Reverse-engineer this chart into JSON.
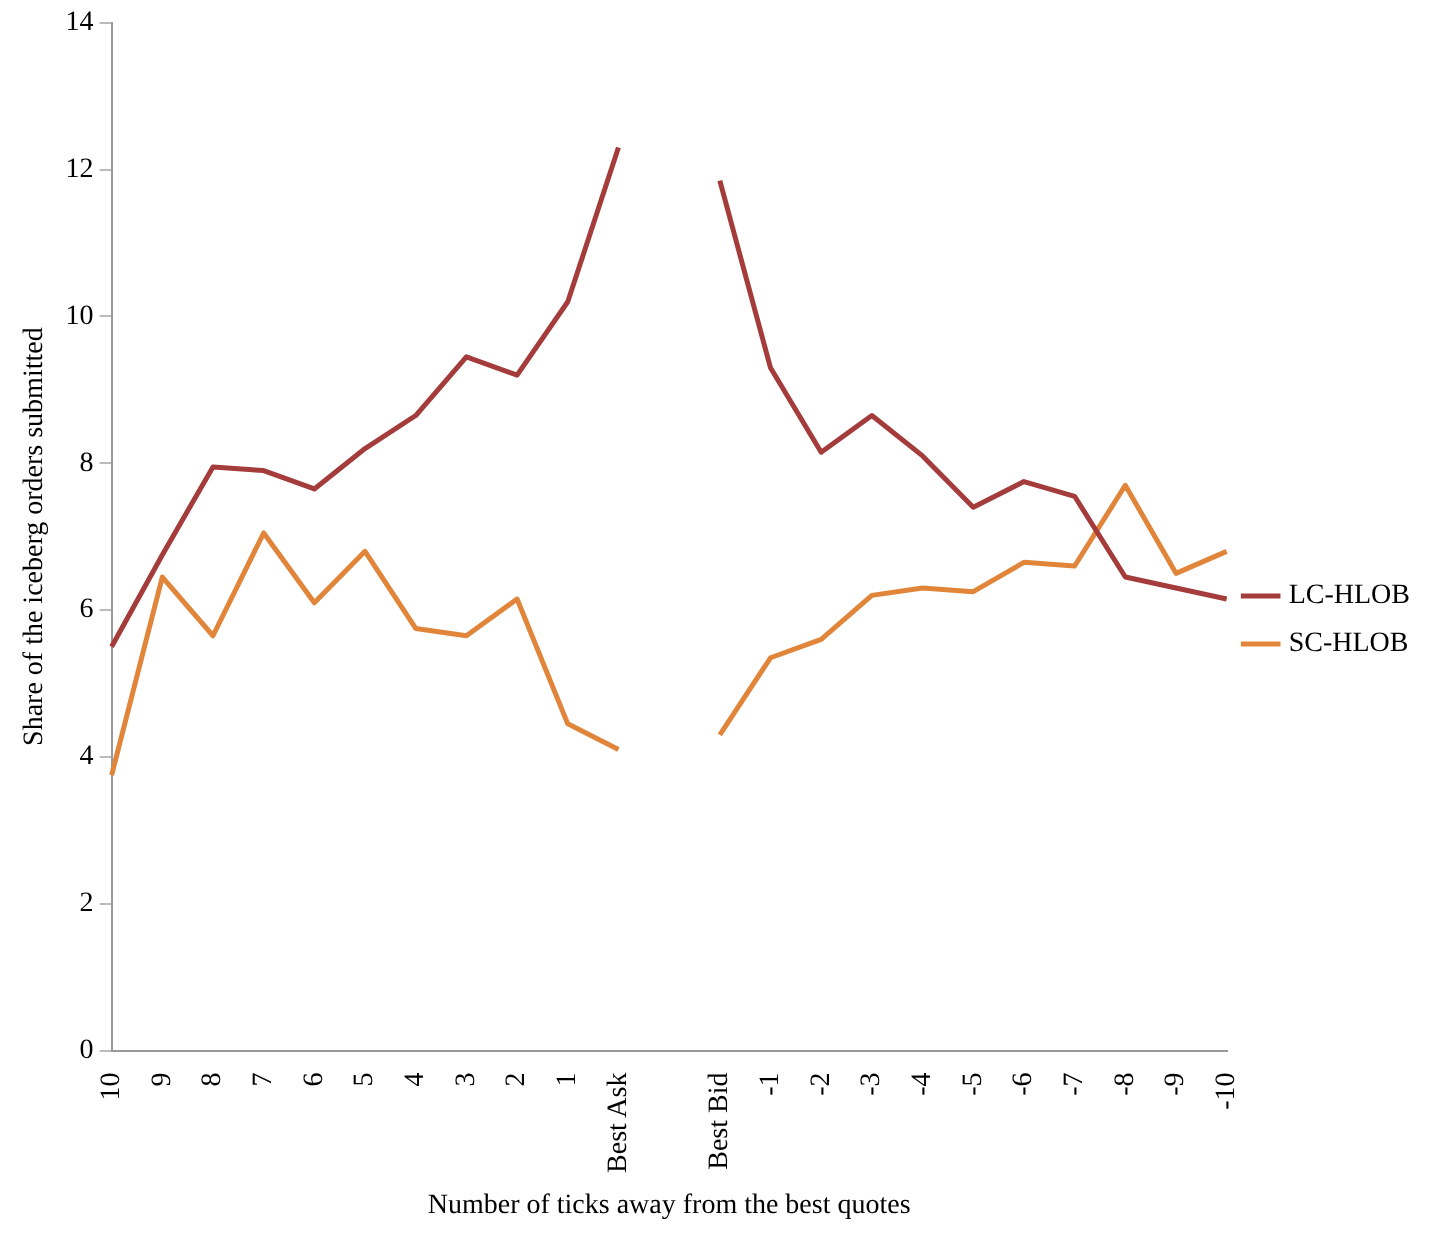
{
  "chart_data": {
    "type": "line",
    "xlabel": "Number of ticks away from the best quotes",
    "ylabel": "Share of the iceberg orders submitted",
    "categories": [
      "10",
      "9",
      "8",
      "7",
      "6",
      "5",
      "4",
      "3",
      "2",
      "1",
      "Best Ask",
      null,
      "Best Bid",
      "-1",
      "-2",
      "-3",
      "-4",
      "-5",
      "-6",
      "-7",
      "-8",
      "-9",
      "-10"
    ],
    "series": [
      {
        "name": "LC-HLOB",
        "color": "#a33c3a",
        "values": [
          5.5,
          6.75,
          7.95,
          7.9,
          7.65,
          8.2,
          8.65,
          9.45,
          9.2,
          10.2,
          12.3,
          null,
          11.85,
          9.3,
          8.15,
          8.65,
          8.1,
          7.4,
          7.75,
          7.55,
          6.45,
          6.3,
          6.15
        ]
      },
      {
        "name": "SC-HLOB",
        "color": "#e0853a",
        "values": [
          3.75,
          6.45,
          5.65,
          7.05,
          6.1,
          6.8,
          5.75,
          5.65,
          6.15,
          4.45,
          4.1,
          null,
          4.3,
          5.35,
          5.6,
          6.2,
          6.3,
          6.25,
          6.65,
          6.6,
          7.7,
          6.5,
          6.8
        ]
      }
    ],
    "ylim": [
      0,
      14
    ],
    "yticks": [
      0,
      2,
      4,
      6,
      8,
      10,
      12,
      14
    ],
    "grid": false,
    "legend": "right",
    "marker": "none",
    "line_style": "solid"
  }
}
